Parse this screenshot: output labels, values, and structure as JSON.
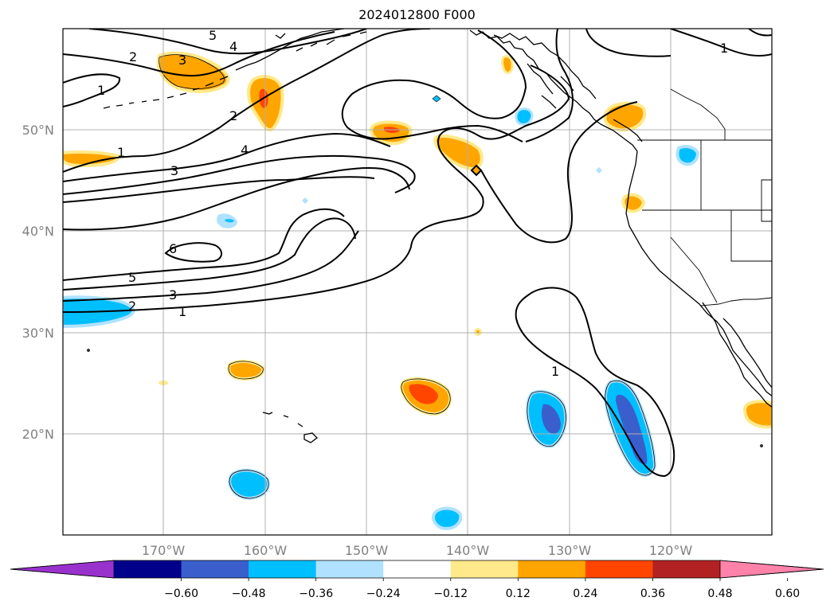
{
  "title": "2024012800 F000",
  "latitude_labels": [
    "50°N",
    "40°N",
    "30°N",
    "20°N"
  ],
  "longitude_labels": [
    "170°W",
    "160°W",
    "150°W",
    "140°W",
    "130°W",
    "120°W"
  ],
  "contour_labels": [
    "5",
    "4",
    "3",
    "2",
    "1",
    "2",
    "1",
    "3",
    "4",
    "1",
    "6",
    "5",
    "3",
    "2",
    "1",
    "1",
    "1"
  ],
  "colorbar": {
    "ticks": [
      "−0.60",
      "−0.48",
      "−0.36",
      "−0.24",
      "−0.12",
      "0.12",
      "0.24",
      "0.36",
      "0.48",
      "0.60"
    ],
    "colors": [
      "#9932cc",
      "#00008b",
      "#3a5fcd",
      "#00bfff",
      "#b0e2ff",
      "#ffffff",
      "#ffe98a",
      "#ffa500",
      "#ff4500",
      "#b22222",
      "#ff82ab"
    ]
  }
}
